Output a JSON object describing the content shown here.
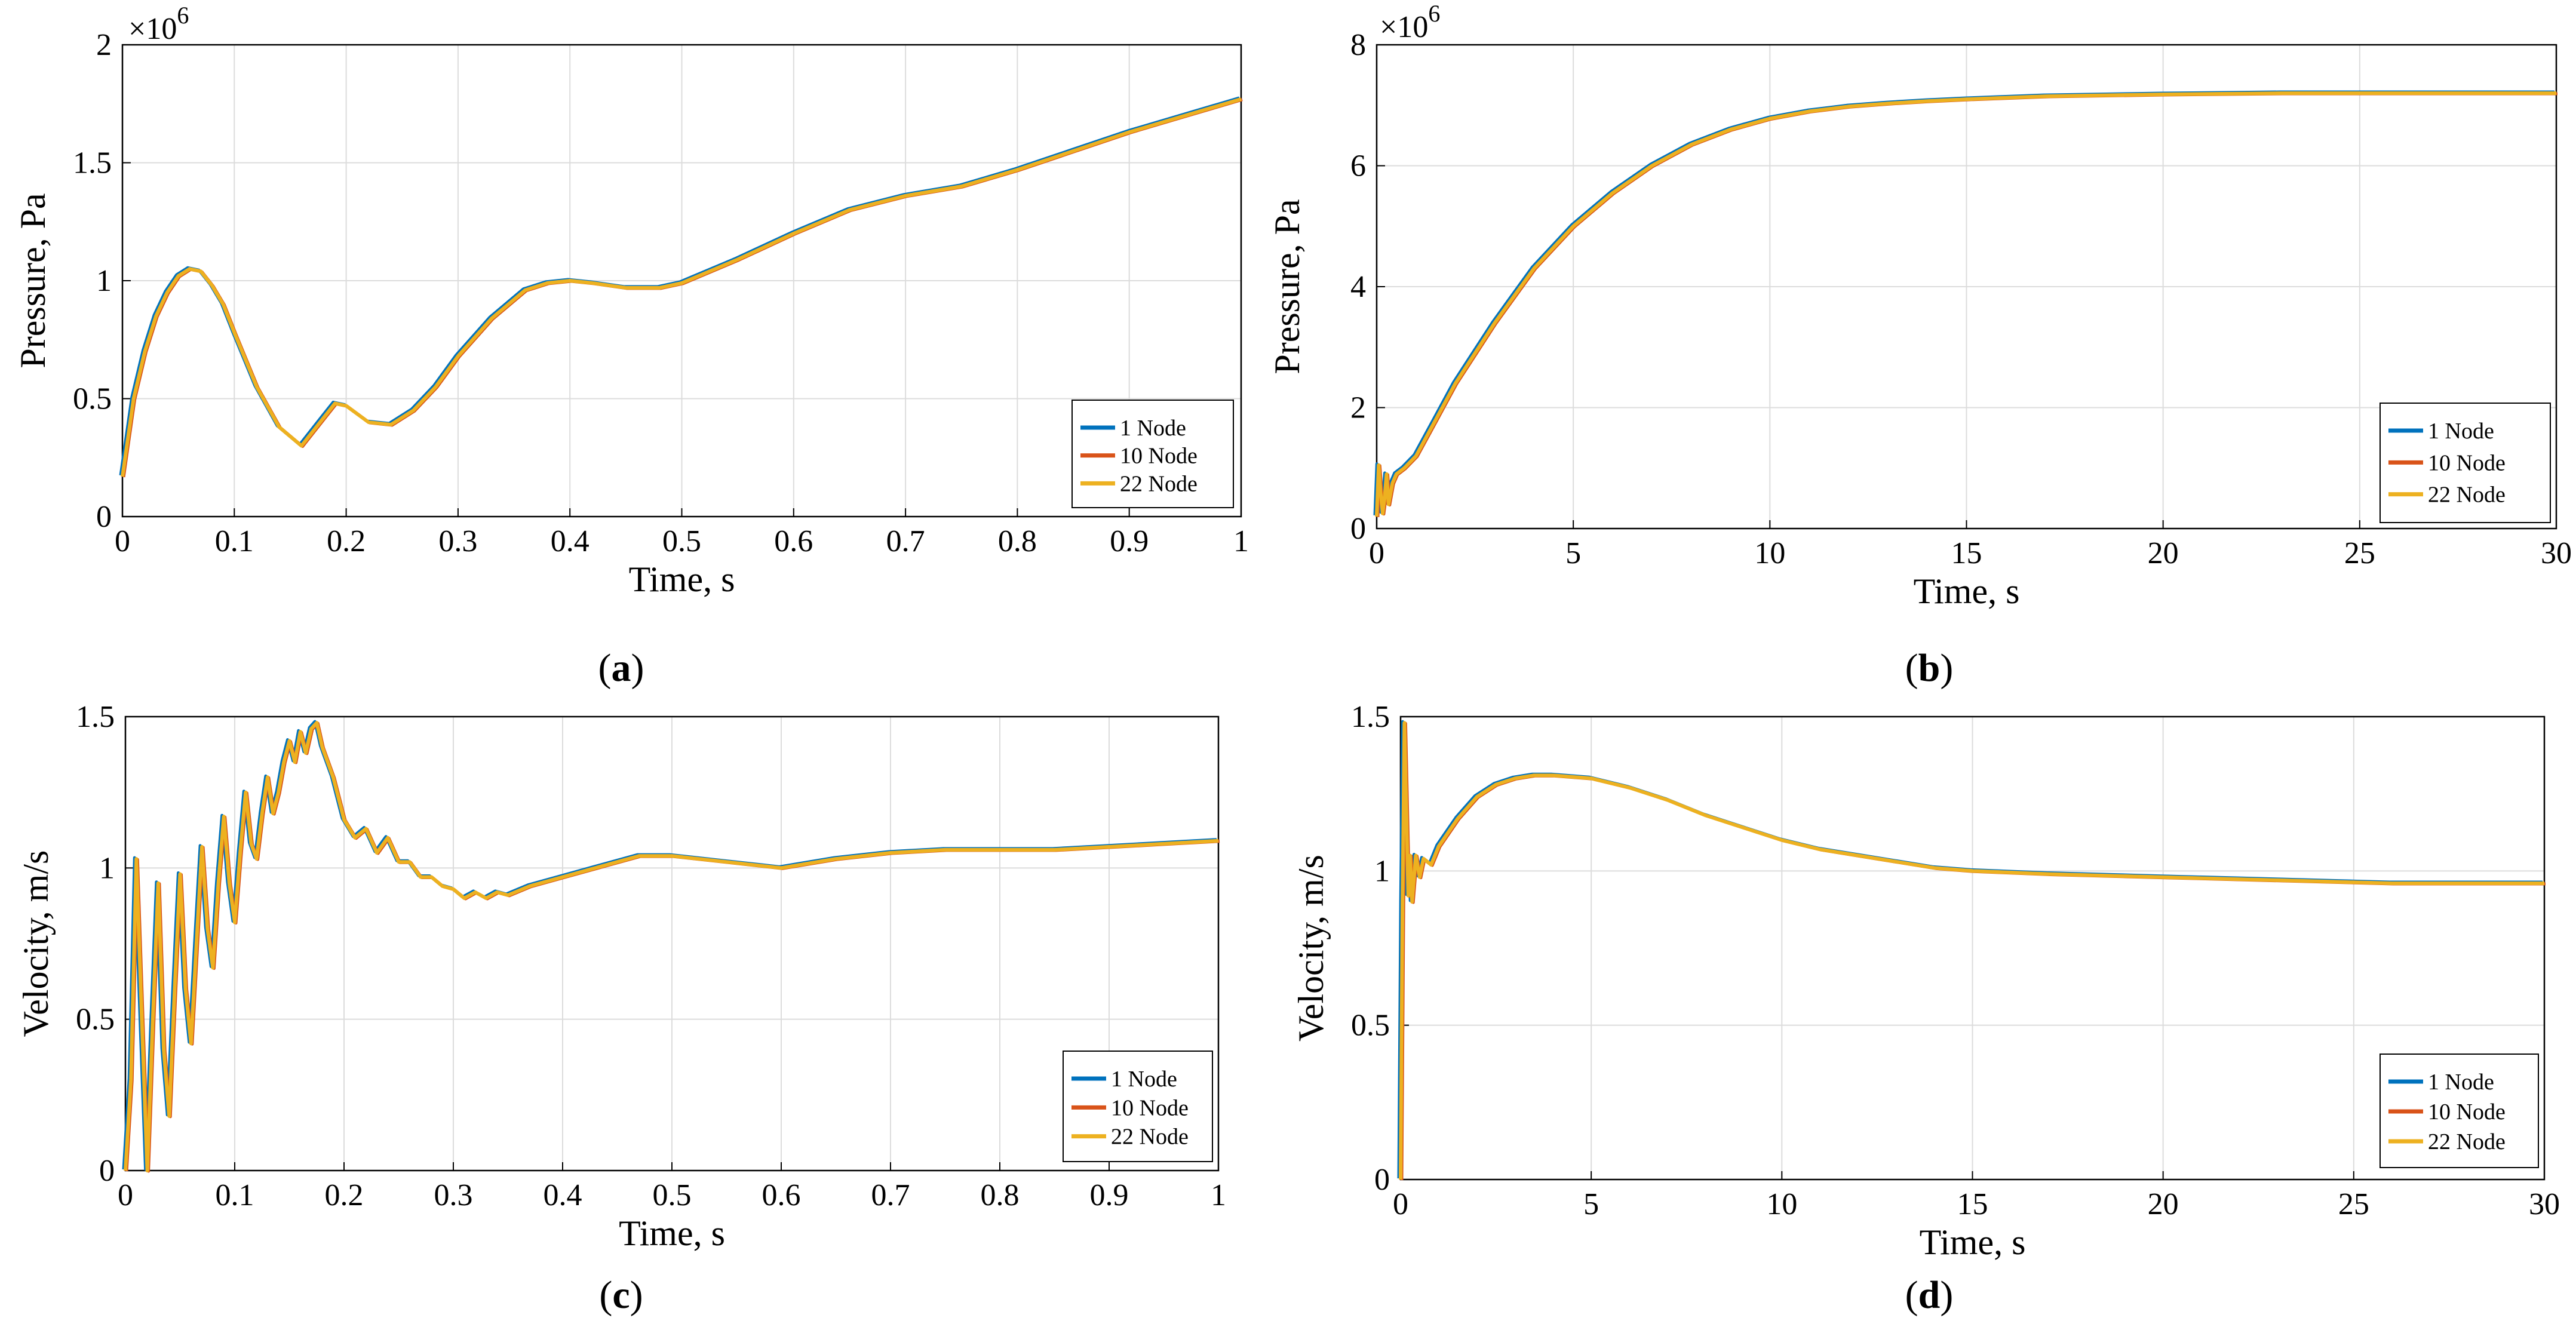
{
  "colors": {
    "series1": "#0072BD",
    "series2": "#D95319",
    "series3": "#EDB120",
    "grid": "#dcdcdc",
    "axis": "#000000"
  },
  "chart_data": [
    {
      "id": "a",
      "type": "line",
      "caption": "a",
      "xlabel": "Time, s",
      "ylabel": "Pressure, Pa",
      "multiplier": "×10",
      "multiplier_exp": "6",
      "xlim": [
        0,
        1
      ],
      "ylim": [
        0,
        2
      ],
      "xticks": [
        "0",
        "0.1",
        "0.2",
        "0.3",
        "0.4",
        "0.5",
        "0.6",
        "0.7",
        "0.8",
        "0.9",
        "1"
      ],
      "yticks": [
        "0",
        "0.5",
        "1",
        "1.5",
        "2"
      ],
      "grid": true,
      "legend": "bottom-right",
      "series": [
        {
          "name": "1 Node",
          "color": "#0072BD"
        },
        {
          "name": "10 Node",
          "color": "#D95319"
        },
        {
          "name": "22 Node",
          "color": "#EDB120"
        }
      ],
      "x": [
        0,
        0.01,
        0.02,
        0.03,
        0.04,
        0.05,
        0.06,
        0.07,
        0.08,
        0.09,
        0.1,
        0.12,
        0.14,
        0.16,
        0.18,
        0.19,
        0.2,
        0.22,
        0.24,
        0.26,
        0.28,
        0.3,
        0.33,
        0.36,
        0.38,
        0.4,
        0.42,
        0.45,
        0.48,
        0.5,
        0.55,
        0.6,
        0.65,
        0.7,
        0.75,
        0.8,
        0.85,
        0.9,
        0.95,
        1.0
      ],
      "y": [
        0.17,
        0.5,
        0.7,
        0.85,
        0.95,
        1.02,
        1.05,
        1.04,
        0.98,
        0.9,
        0.78,
        0.55,
        0.38,
        0.3,
        0.42,
        0.48,
        0.47,
        0.4,
        0.39,
        0.45,
        0.55,
        0.68,
        0.84,
        0.96,
        0.99,
        1.0,
        0.99,
        0.97,
        0.97,
        0.99,
        1.09,
        1.2,
        1.3,
        1.36,
        1.4,
        1.47,
        1.55,
        1.63,
        1.7,
        1.77
      ]
    },
    {
      "id": "b",
      "type": "line",
      "caption": "b",
      "xlabel": "Time, s",
      "ylabel": "Pressure, Pa",
      "multiplier": "×10",
      "multiplier_exp": "6",
      "xlim": [
        0,
        30
      ],
      "ylim": [
        0,
        8
      ],
      "xticks": [
        "0",
        "5",
        "10",
        "15",
        "20",
        "25",
        "30"
      ],
      "yticks": [
        "0",
        "2",
        "4",
        "6",
        "8"
      ],
      "grid": true,
      "legend": "bottom-right",
      "series": [
        {
          "name": "1 Node",
          "color": "#0072BD"
        },
        {
          "name": "10 Node",
          "color": "#D95319"
        },
        {
          "name": "22 Node",
          "color": "#EDB120"
        }
      ],
      "x": [
        0,
        0.05,
        0.1,
        0.15,
        0.2,
        0.25,
        0.3,
        0.4,
        0.5,
        0.7,
        1,
        1.5,
        2,
        3,
        4,
        5,
        6,
        7,
        8,
        9,
        10,
        11,
        12,
        13,
        14,
        15,
        17,
        20,
        23,
        26,
        30
      ],
      "y": [
        0.2,
        1.05,
        0.6,
        0.25,
        0.5,
        0.9,
        0.4,
        0.75,
        0.9,
        1.0,
        1.2,
        1.8,
        2.4,
        3.4,
        4.3,
        5.0,
        5.55,
        6.0,
        6.35,
        6.6,
        6.78,
        6.9,
        6.98,
        7.03,
        7.07,
        7.1,
        7.15,
        7.18,
        7.2,
        7.2,
        7.2
      ]
    },
    {
      "id": "c",
      "type": "line",
      "caption": "c",
      "xlabel": "Time, s",
      "ylabel": "Velocity, m/s",
      "xlim": [
        0,
        1
      ],
      "ylim": [
        0,
        1.5
      ],
      "xticks": [
        "0",
        "0.1",
        "0.2",
        "0.3",
        "0.4",
        "0.5",
        "0.6",
        "0.7",
        "0.8",
        "0.9",
        "1"
      ],
      "yticks": [
        "0",
        "0.5",
        "1",
        "1.5"
      ],
      "grid": true,
      "legend": "bottom-right",
      "series": [
        {
          "name": "1 Node",
          "color": "#0072BD"
        },
        {
          "name": "10 Node",
          "color": "#D95319"
        },
        {
          "name": "22 Node",
          "color": "#EDB120"
        }
      ],
      "x": [
        0,
        0.005,
        0.01,
        0.015,
        0.02,
        0.025,
        0.03,
        0.035,
        0.04,
        0.045,
        0.05,
        0.055,
        0.06,
        0.065,
        0.07,
        0.075,
        0.08,
        0.085,
        0.09,
        0.095,
        0.1,
        0.105,
        0.11,
        0.115,
        0.12,
        0.125,
        0.13,
        0.135,
        0.14,
        0.145,
        0.15,
        0.155,
        0.16,
        0.165,
        0.17,
        0.175,
        0.18,
        0.19,
        0.2,
        0.21,
        0.22,
        0.23,
        0.24,
        0.25,
        0.26,
        0.27,
        0.28,
        0.29,
        0.3,
        0.31,
        0.32,
        0.33,
        0.34,
        0.35,
        0.37,
        0.4,
        0.43,
        0.47,
        0.5,
        0.55,
        0.6,
        0.65,
        0.7,
        0.75,
        0.8,
        0.85,
        0.9,
        0.95,
        1.0
      ],
      "y": [
        0.0,
        0.3,
        1.03,
        0.5,
        0.0,
        0.5,
        0.95,
        0.4,
        0.18,
        0.6,
        0.98,
        0.6,
        0.42,
        0.75,
        1.07,
        0.8,
        0.67,
        0.95,
        1.17,
        0.95,
        0.82,
        1.05,
        1.25,
        1.08,
        1.03,
        1.18,
        1.3,
        1.18,
        1.25,
        1.35,
        1.42,
        1.35,
        1.45,
        1.38,
        1.46,
        1.48,
        1.4,
        1.3,
        1.16,
        1.1,
        1.13,
        1.05,
        1.1,
        1.02,
        1.02,
        0.97,
        0.97,
        0.94,
        0.93,
        0.9,
        0.92,
        0.9,
        0.92,
        0.91,
        0.94,
        0.97,
        1.0,
        1.04,
        1.04,
        1.02,
        1.0,
        1.03,
        1.05,
        1.06,
        1.06,
        1.06,
        1.07,
        1.08,
        1.09
      ]
    },
    {
      "id": "d",
      "type": "line",
      "caption": "d",
      "xlabel": "Time, s",
      "ylabel": "Velocity, m/s",
      "xlim": [
        0,
        30
      ],
      "ylim": [
        0,
        1.5
      ],
      "xticks": [
        "0",
        "5",
        "10",
        "15",
        "20",
        "25",
        "30"
      ],
      "yticks": [
        "0",
        "0.5",
        "1",
        "1.5"
      ],
      "grid": true,
      "legend": "bottom-right",
      "series": [
        {
          "name": "1 Node",
          "color": "#0072BD"
        },
        {
          "name": "10 Node",
          "color": "#D95319"
        },
        {
          "name": "22 Node",
          "color": "#EDB120"
        }
      ],
      "x": [
        0,
        0.05,
        0.1,
        0.15,
        0.2,
        0.25,
        0.3,
        0.4,
        0.5,
        0.6,
        0.8,
        1,
        1.5,
        2,
        2.5,
        3,
        3.5,
        4,
        5,
        6,
        7,
        8,
        9,
        10,
        11,
        12,
        13,
        14,
        15,
        17,
        20,
        23,
        26,
        30
      ],
      "y": [
        0.0,
        0.9,
        1.48,
        1.2,
        0.92,
        1.05,
        0.9,
        1.05,
        0.98,
        1.04,
        1.02,
        1.08,
        1.17,
        1.24,
        1.28,
        1.3,
        1.31,
        1.31,
        1.3,
        1.27,
        1.23,
        1.18,
        1.14,
        1.1,
        1.07,
        1.05,
        1.03,
        1.01,
        1.0,
        0.99,
        0.98,
        0.97,
        0.96,
        0.96
      ]
    }
  ]
}
